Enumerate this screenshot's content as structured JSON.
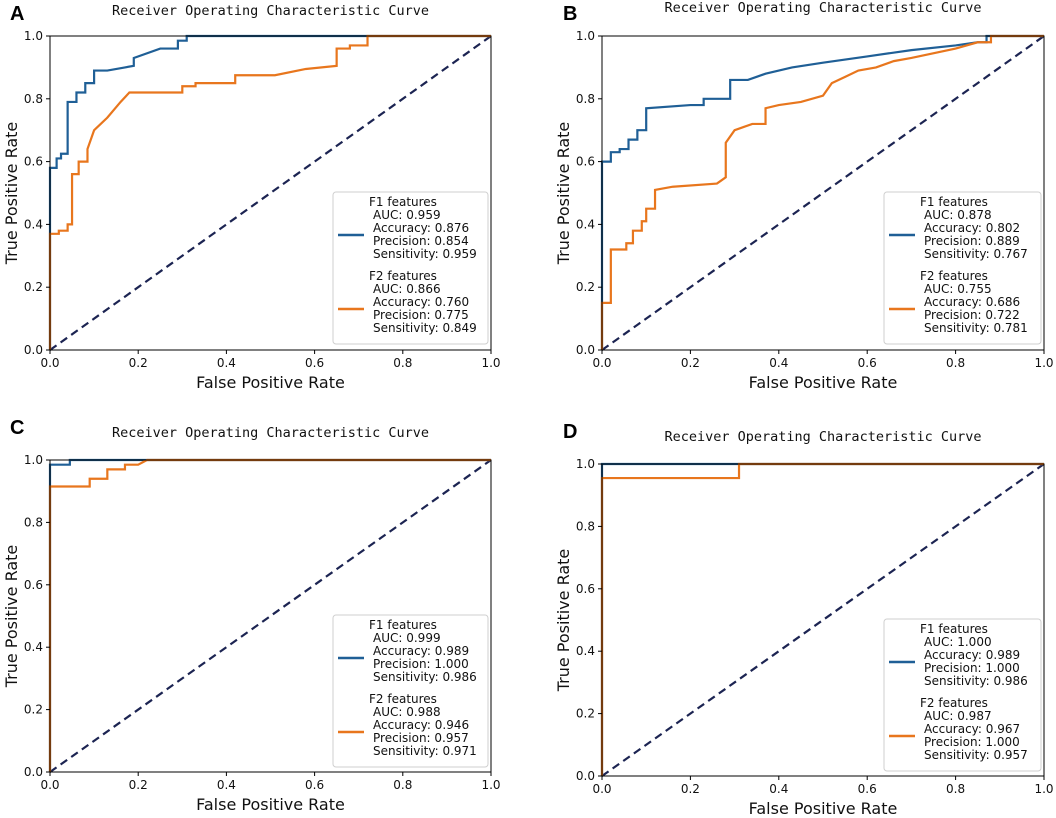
{
  "chart_data": [
    {
      "panel": "A",
      "type": "line",
      "title": "Receiver Operating Characteristic Curve",
      "xlabel": "False Positive Rate",
      "ylabel": "True Positive Rate",
      "xlim": [
        0,
        1
      ],
      "ylim": [
        0,
        1
      ],
      "xticks": [
        "0.0",
        "0.2",
        "0.4",
        "0.6",
        "0.8",
        "1.0"
      ],
      "yticks": [
        "0.0",
        "0.2",
        "0.4",
        "0.6",
        "0.8",
        "1.0"
      ],
      "legend_position": "lower-right",
      "series": [
        {
          "name": "F1 features",
          "color": "#1f5f96",
          "stats": [
            "AUC: 0.959",
            "Accuracy: 0.876",
            "Precision: 0.854",
            "Sensitivity: 0.959"
          ],
          "x": [
            0,
            0,
            0.015,
            0.015,
            0.025,
            0.025,
            0.04,
            0.04,
            0.06,
            0.06,
            0.08,
            0.08,
            0.1,
            0.1,
            0.13,
            0.17,
            0.19,
            0.19,
            0.25,
            0.25,
            0.29,
            0.29,
            0.31,
            0.31,
            1.0
          ],
          "y": [
            0,
            0.58,
            0.58,
            0.61,
            0.61,
            0.625,
            0.625,
            0.79,
            0.79,
            0.82,
            0.82,
            0.85,
            0.85,
            0.89,
            0.89,
            0.9,
            0.905,
            0.93,
            0.96,
            0.96,
            0.96,
            0.985,
            0.985,
            1.0,
            1.0
          ]
        },
        {
          "name": "F2 features",
          "color": "#e8761d",
          "stats": [
            "AUC: 0.866",
            "Accuracy: 0.760",
            "Precision: 0.775",
            "Sensitivity: 0.849"
          ],
          "x": [
            0,
            0,
            0.02,
            0.02,
            0.04,
            0.04,
            0.05,
            0.05,
            0.065,
            0.065,
            0.085,
            0.085,
            0.1,
            0.13,
            0.16,
            0.18,
            0.3,
            0.3,
            0.33,
            0.33,
            0.37,
            0.42,
            0.42,
            0.51,
            0.58,
            0.65,
            0.65,
            0.68,
            0.68,
            0.72,
            0.72,
            1.0
          ],
          "y": [
            0,
            0.37,
            0.37,
            0.38,
            0.38,
            0.4,
            0.4,
            0.56,
            0.56,
            0.6,
            0.6,
            0.64,
            0.7,
            0.74,
            0.79,
            0.82,
            0.82,
            0.84,
            0.84,
            0.85,
            0.85,
            0.85,
            0.875,
            0.875,
            0.895,
            0.905,
            0.96,
            0.96,
            0.97,
            0.97,
            1.0,
            1.0
          ]
        }
      ]
    },
    {
      "panel": "B",
      "type": "line",
      "title": "Receiver Operating Characteristic Curve",
      "xlabel": "False Positive Rate",
      "ylabel": "True Positive Rate",
      "xlim": [
        0,
        1
      ],
      "ylim": [
        0,
        1
      ],
      "xticks": [
        "0.0",
        "0.2",
        "0.4",
        "0.6",
        "0.8",
        "1.0"
      ],
      "yticks": [
        "0.0",
        "0.2",
        "0.4",
        "0.6",
        "0.8",
        "1.0"
      ],
      "legend_position": "lower-right",
      "series": [
        {
          "name": "F1 features",
          "color": "#1f5f96",
          "stats": [
            "AUC: 0.878",
            "Accuracy: 0.802",
            "Precision: 0.889",
            "Sensitivity: 0.767"
          ],
          "x": [
            0,
            0,
            0.02,
            0.02,
            0.04,
            0.04,
            0.06,
            0.06,
            0.08,
            0.08,
            0.1,
            0.1,
            0.2,
            0.23,
            0.23,
            0.29,
            0.29,
            0.33,
            0.35,
            0.37,
            0.4,
            0.43,
            0.5,
            0.6,
            0.7,
            0.8,
            0.85,
            0.87,
            0.87,
            1.0
          ],
          "y": [
            0,
            0.6,
            0.6,
            0.63,
            0.63,
            0.64,
            0.64,
            0.67,
            0.67,
            0.7,
            0.7,
            0.77,
            0.78,
            0.78,
            0.8,
            0.8,
            0.86,
            0.86,
            0.87,
            0.88,
            0.89,
            0.9,
            0.915,
            0.935,
            0.955,
            0.97,
            0.98,
            0.98,
            1.0,
            1.0
          ]
        },
        {
          "name": "F2 features",
          "color": "#e8761d",
          "stats": [
            "AUC: 0.755",
            "Accuracy: 0.686",
            "Precision: 0.722",
            "Sensitivity: 0.781"
          ],
          "x": [
            0,
            0,
            0.02,
            0.02,
            0.055,
            0.055,
            0.07,
            0.07,
            0.09,
            0.09,
            0.1,
            0.1,
            0.12,
            0.12,
            0.16,
            0.26,
            0.27,
            0.28,
            0.28,
            0.3,
            0.32,
            0.34,
            0.37,
            0.37,
            0.4,
            0.45,
            0.5,
            0.52,
            0.55,
            0.58,
            0.62,
            0.66,
            0.7,
            0.8,
            0.85,
            0.88,
            0.88,
            1.0
          ],
          "y": [
            0,
            0.15,
            0.15,
            0.32,
            0.32,
            0.34,
            0.34,
            0.38,
            0.38,
            0.41,
            0.41,
            0.45,
            0.45,
            0.51,
            0.52,
            0.53,
            0.54,
            0.55,
            0.66,
            0.7,
            0.71,
            0.72,
            0.72,
            0.77,
            0.78,
            0.79,
            0.81,
            0.85,
            0.87,
            0.89,
            0.9,
            0.92,
            0.93,
            0.96,
            0.98,
            0.98,
            1.0,
            1.0
          ]
        }
      ]
    },
    {
      "panel": "C",
      "type": "line",
      "title": "Receiver Operating Characteristic Curve",
      "xlabel": "False Positive Rate",
      "ylabel": "True Positive Rate",
      "xlim": [
        0,
        1
      ],
      "ylim": [
        0,
        1
      ],
      "xticks": [
        "0.0",
        "0.2",
        "0.4",
        "0.6",
        "0.8",
        "1.0"
      ],
      "yticks": [
        "0.0",
        "0.2",
        "0.4",
        "0.6",
        "0.8",
        "1.0"
      ],
      "legend_position": "lower-right",
      "series": [
        {
          "name": "F1 features",
          "color": "#1f5f96",
          "stats": [
            "AUC: 0.999",
            "Accuracy: 0.989",
            "Precision: 1.000",
            "Sensitivity: 0.986"
          ],
          "x": [
            0,
            0,
            0.045,
            0.045,
            1.0
          ],
          "y": [
            0,
            0.985,
            0.985,
            1.0,
            1.0
          ]
        },
        {
          "name": "F2 features",
          "color": "#e8761d",
          "stats": [
            "AUC: 0.988",
            "Accuracy: 0.946",
            "Precision: 0.957",
            "Sensitivity: 0.971"
          ],
          "x": [
            0,
            0,
            0.09,
            0.09,
            0.13,
            0.13,
            0.17,
            0.17,
            0.2,
            0.22,
            1.0
          ],
          "y": [
            0,
            0.915,
            0.915,
            0.94,
            0.94,
            0.97,
            0.97,
            0.985,
            0.985,
            1.0,
            1.0
          ]
        }
      ]
    },
    {
      "panel": "D",
      "type": "line",
      "title": "Receiver Operating Characteristic Curve",
      "xlabel": "False Positive Rate",
      "ylabel": "True Positive Rate",
      "xlim": [
        0,
        1
      ],
      "ylim": [
        0,
        1
      ],
      "xticks": [
        "0.0",
        "0.2",
        "0.4",
        "0.6",
        "0.8",
        "1.0"
      ],
      "yticks": [
        "0.0",
        "0.2",
        "0.4",
        "0.6",
        "0.8",
        "1.0"
      ],
      "legend_position": "lower-right",
      "series": [
        {
          "name": "F1 features",
          "color": "#1f5f96",
          "stats": [
            "AUC: 1.000",
            "Accuracy: 0.989",
            "Precision: 1.000",
            "Sensitivity: 0.986"
          ],
          "x": [
            0,
            0,
            1.0
          ],
          "y": [
            0,
            1.0,
            1.0
          ]
        },
        {
          "name": "F2 features",
          "color": "#e8761d",
          "stats": [
            "AUC: 0.987",
            "Accuracy: 0.967",
            "Precision: 1.000",
            "Sensitivity: 0.957"
          ],
          "x": [
            0,
            0,
            0.31,
            0.31,
            1.0
          ],
          "y": [
            0,
            0.955,
            0.955,
            1.0,
            1.0
          ]
        }
      ]
    }
  ],
  "colors": {
    "f1": "#1f5f96",
    "f2": "#e8761d",
    "diagonal": "#1c2452"
  }
}
